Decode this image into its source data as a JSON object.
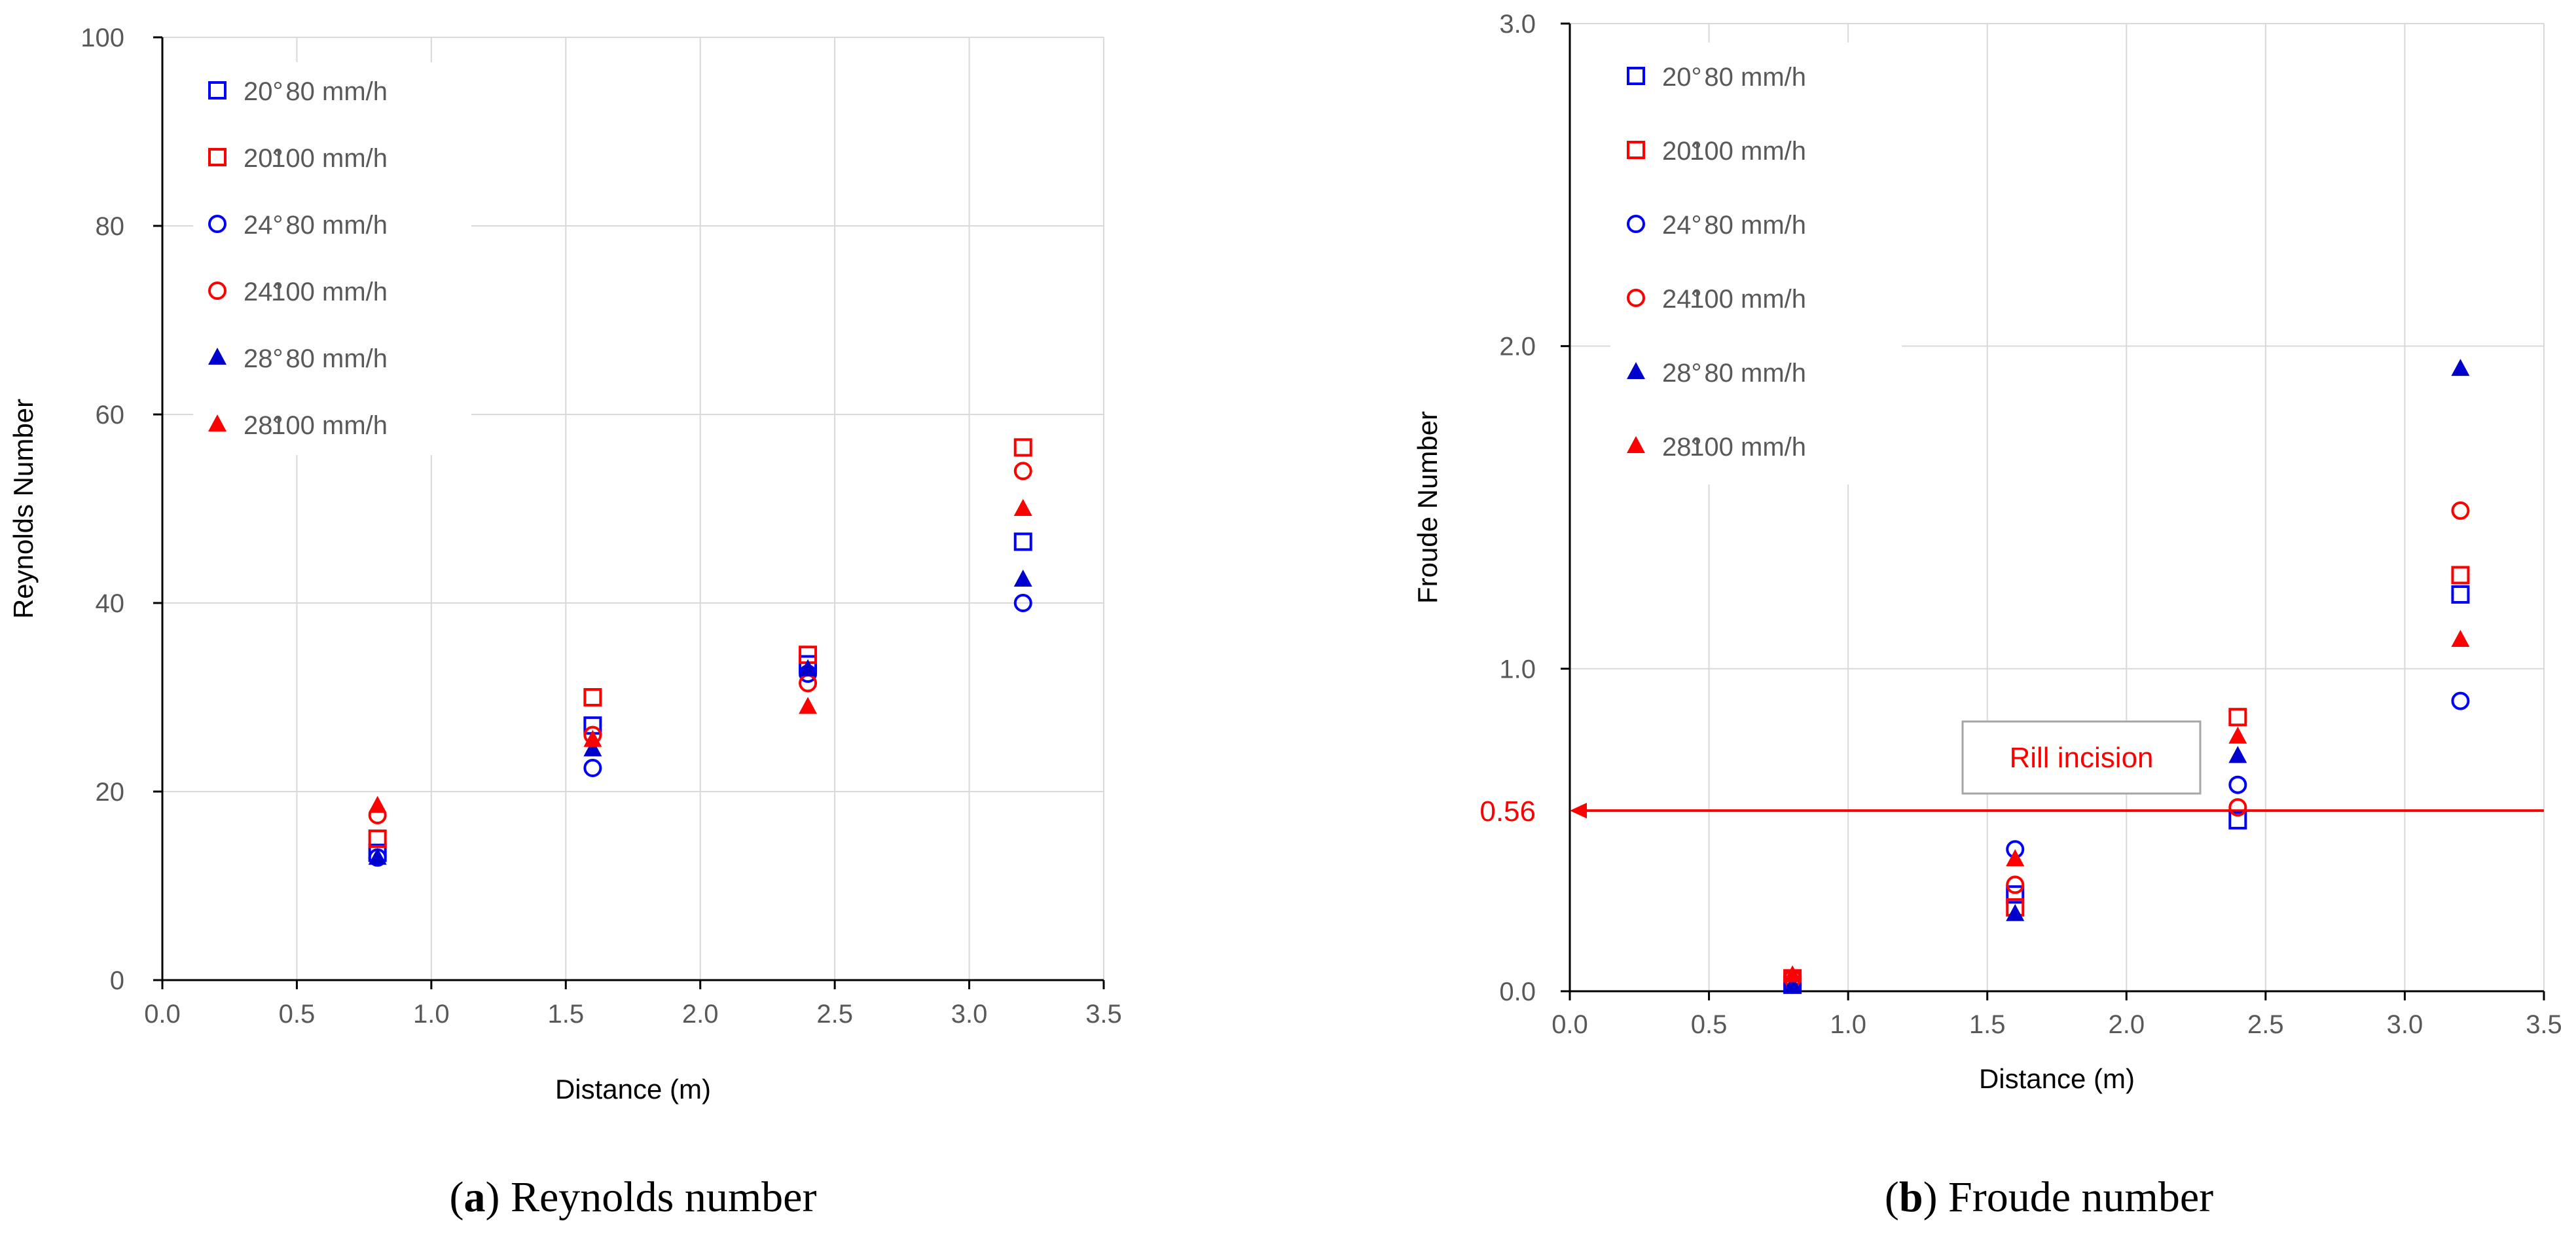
{
  "chart_data": [
    {
      "type": "scatter",
      "id": "reynolds",
      "caption_letter": "a",
      "caption_text": ") Reynolds number",
      "xlabel": "Distance (m)",
      "ylabel": "Reynolds Number",
      "xlim": [
        0,
        3.5
      ],
      "ylim": [
        0,
        100
      ],
      "xticks": [
        0,
        0.5,
        1,
        1.5,
        2,
        2.5,
        3,
        3.5
      ],
      "xtick_labels": [
        "0.0",
        "0.5",
        "1.0",
        "1.5",
        "2.0",
        "2.5",
        "3.0",
        "3.5"
      ],
      "yticks": [
        0,
        20,
        40,
        60,
        80,
        100
      ],
      "ytick_labels": [
        "0",
        "20",
        "40",
        "60",
        "80",
        "100"
      ],
      "grid": true,
      "legend_position": "top-left",
      "series": [
        {
          "name": "20°  80 mm/h",
          "angle": "20°",
          "rain": "80 mm/h",
          "marker": "square-open",
          "color": "#0000ff",
          "x": [
            0.8,
            1.6,
            2.4,
            3.2
          ],
          "y": [
            13.5,
            27,
            33.5,
            46.5
          ]
        },
        {
          "name": "20°  100 mm/h",
          "angle": "20°",
          "rain": "100 mm/h",
          "marker": "square-open",
          "color": "#ff0000",
          "x": [
            0.8,
            1.6,
            2.4,
            3.2
          ],
          "y": [
            15,
            30,
            34.5,
            56.5
          ]
        },
        {
          "name": "24°  80 mm/h",
          "angle": "24°",
          "rain": "80 mm/h",
          "marker": "circle-open",
          "color": "#0000ff",
          "x": [
            0.8,
            1.6,
            2.4,
            3.2
          ],
          "y": [
            13,
            22.5,
            32.5,
            40
          ]
        },
        {
          "name": "24°  100 mm/h",
          "angle": "24°",
          "rain": "100 mm/h",
          "marker": "circle-open",
          "color": "#ff0000",
          "x": [
            0.8,
            1.6,
            2.4,
            3.2
          ],
          "y": [
            17.5,
            26,
            31.5,
            54
          ]
        },
        {
          "name": "28°  80 mm/h",
          "angle": "28°",
          "rain": "80 mm/h",
          "marker": "triangle-filled",
          "color": "#0000cc",
          "x": [
            0.8,
            1.6,
            2.4,
            3.2
          ],
          "y": [
            13,
            24.5,
            33,
            42.5
          ]
        },
        {
          "name": "28°  100 mm/h",
          "angle": "28°",
          "rain": "100 mm/h",
          "marker": "triangle-filled",
          "color": "#ff0000",
          "x": [
            0.8,
            1.6,
            2.4,
            3.2
          ],
          "y": [
            18.5,
            25.5,
            29,
            50
          ]
        }
      ]
    },
    {
      "type": "scatter",
      "id": "froude",
      "caption_letter": "b",
      "caption_text": ") Froude number",
      "xlabel": "Distance (m)",
      "ylabel": "Froude Number",
      "xlim": [
        0,
        3.5
      ],
      "ylim": [
        0,
        3
      ],
      "xticks": [
        0,
        0.5,
        1,
        1.5,
        2,
        2.5,
        3,
        3.5
      ],
      "xtick_labels": [
        "0.0",
        "0.5",
        "1.0",
        "1.5",
        "2.0",
        "2.5",
        "3.0",
        "3.5"
      ],
      "yticks": [
        0,
        1,
        2,
        3
      ],
      "ytick_labels": [
        "0.0",
        "1.0",
        "2.0",
        "3.0"
      ],
      "grid": true,
      "legend_position": "top-left",
      "reference_line": {
        "value": 0.56,
        "label": "0.56",
        "color": "#ff0000"
      },
      "annotation": {
        "text": "Rill incision",
        "color": "#ff0000"
      },
      "series": [
        {
          "name": "20°  80 mm/h",
          "angle": "20°",
          "rain": "80 mm/h",
          "marker": "square-open",
          "color": "#0000ff",
          "x": [
            0.8,
            1.6,
            2.4,
            3.2
          ],
          "y": [
            0.02,
            0.3,
            0.53,
            1.23
          ]
        },
        {
          "name": "20°  100 mm/h",
          "angle": "20°",
          "rain": "100 mm/h",
          "marker": "square-open",
          "color": "#ff0000",
          "x": [
            0.8,
            1.6,
            2.4,
            3.2
          ],
          "y": [
            0.04,
            0.26,
            0.85,
            1.29
          ]
        },
        {
          "name": "24°  80 mm/h",
          "angle": "24°",
          "rain": "80 mm/h",
          "marker": "circle-open",
          "color": "#0000ff",
          "x": [
            0.8,
            1.6,
            2.4,
            3.2
          ],
          "y": [
            0.02,
            0.44,
            0.64,
            0.9
          ]
        },
        {
          "name": "24°  100 mm/h",
          "angle": "24°",
          "rain": "100 mm/h",
          "marker": "circle-open",
          "color": "#ff0000",
          "x": [
            0.8,
            1.6,
            2.4,
            3.2
          ],
          "y": [
            0.04,
            0.33,
            0.57,
            1.49
          ]
        },
        {
          "name": "28°  80 mm/h",
          "angle": "28°",
          "rain": "80 mm/h",
          "marker": "triangle-filled",
          "color": "#0000cc",
          "x": [
            0.8,
            1.6,
            2.4,
            3.2
          ],
          "y": [
            0.02,
            0.24,
            0.73,
            1.93
          ]
        },
        {
          "name": "28°  100 mm/h",
          "angle": "28°",
          "rain": "100 mm/h",
          "marker": "triangle-filled",
          "color": "#ff0000",
          "x": [
            0.8,
            1.6,
            2.4,
            3.2
          ],
          "y": [
            0.05,
            0.41,
            0.79,
            1.09
          ]
        }
      ]
    }
  ]
}
